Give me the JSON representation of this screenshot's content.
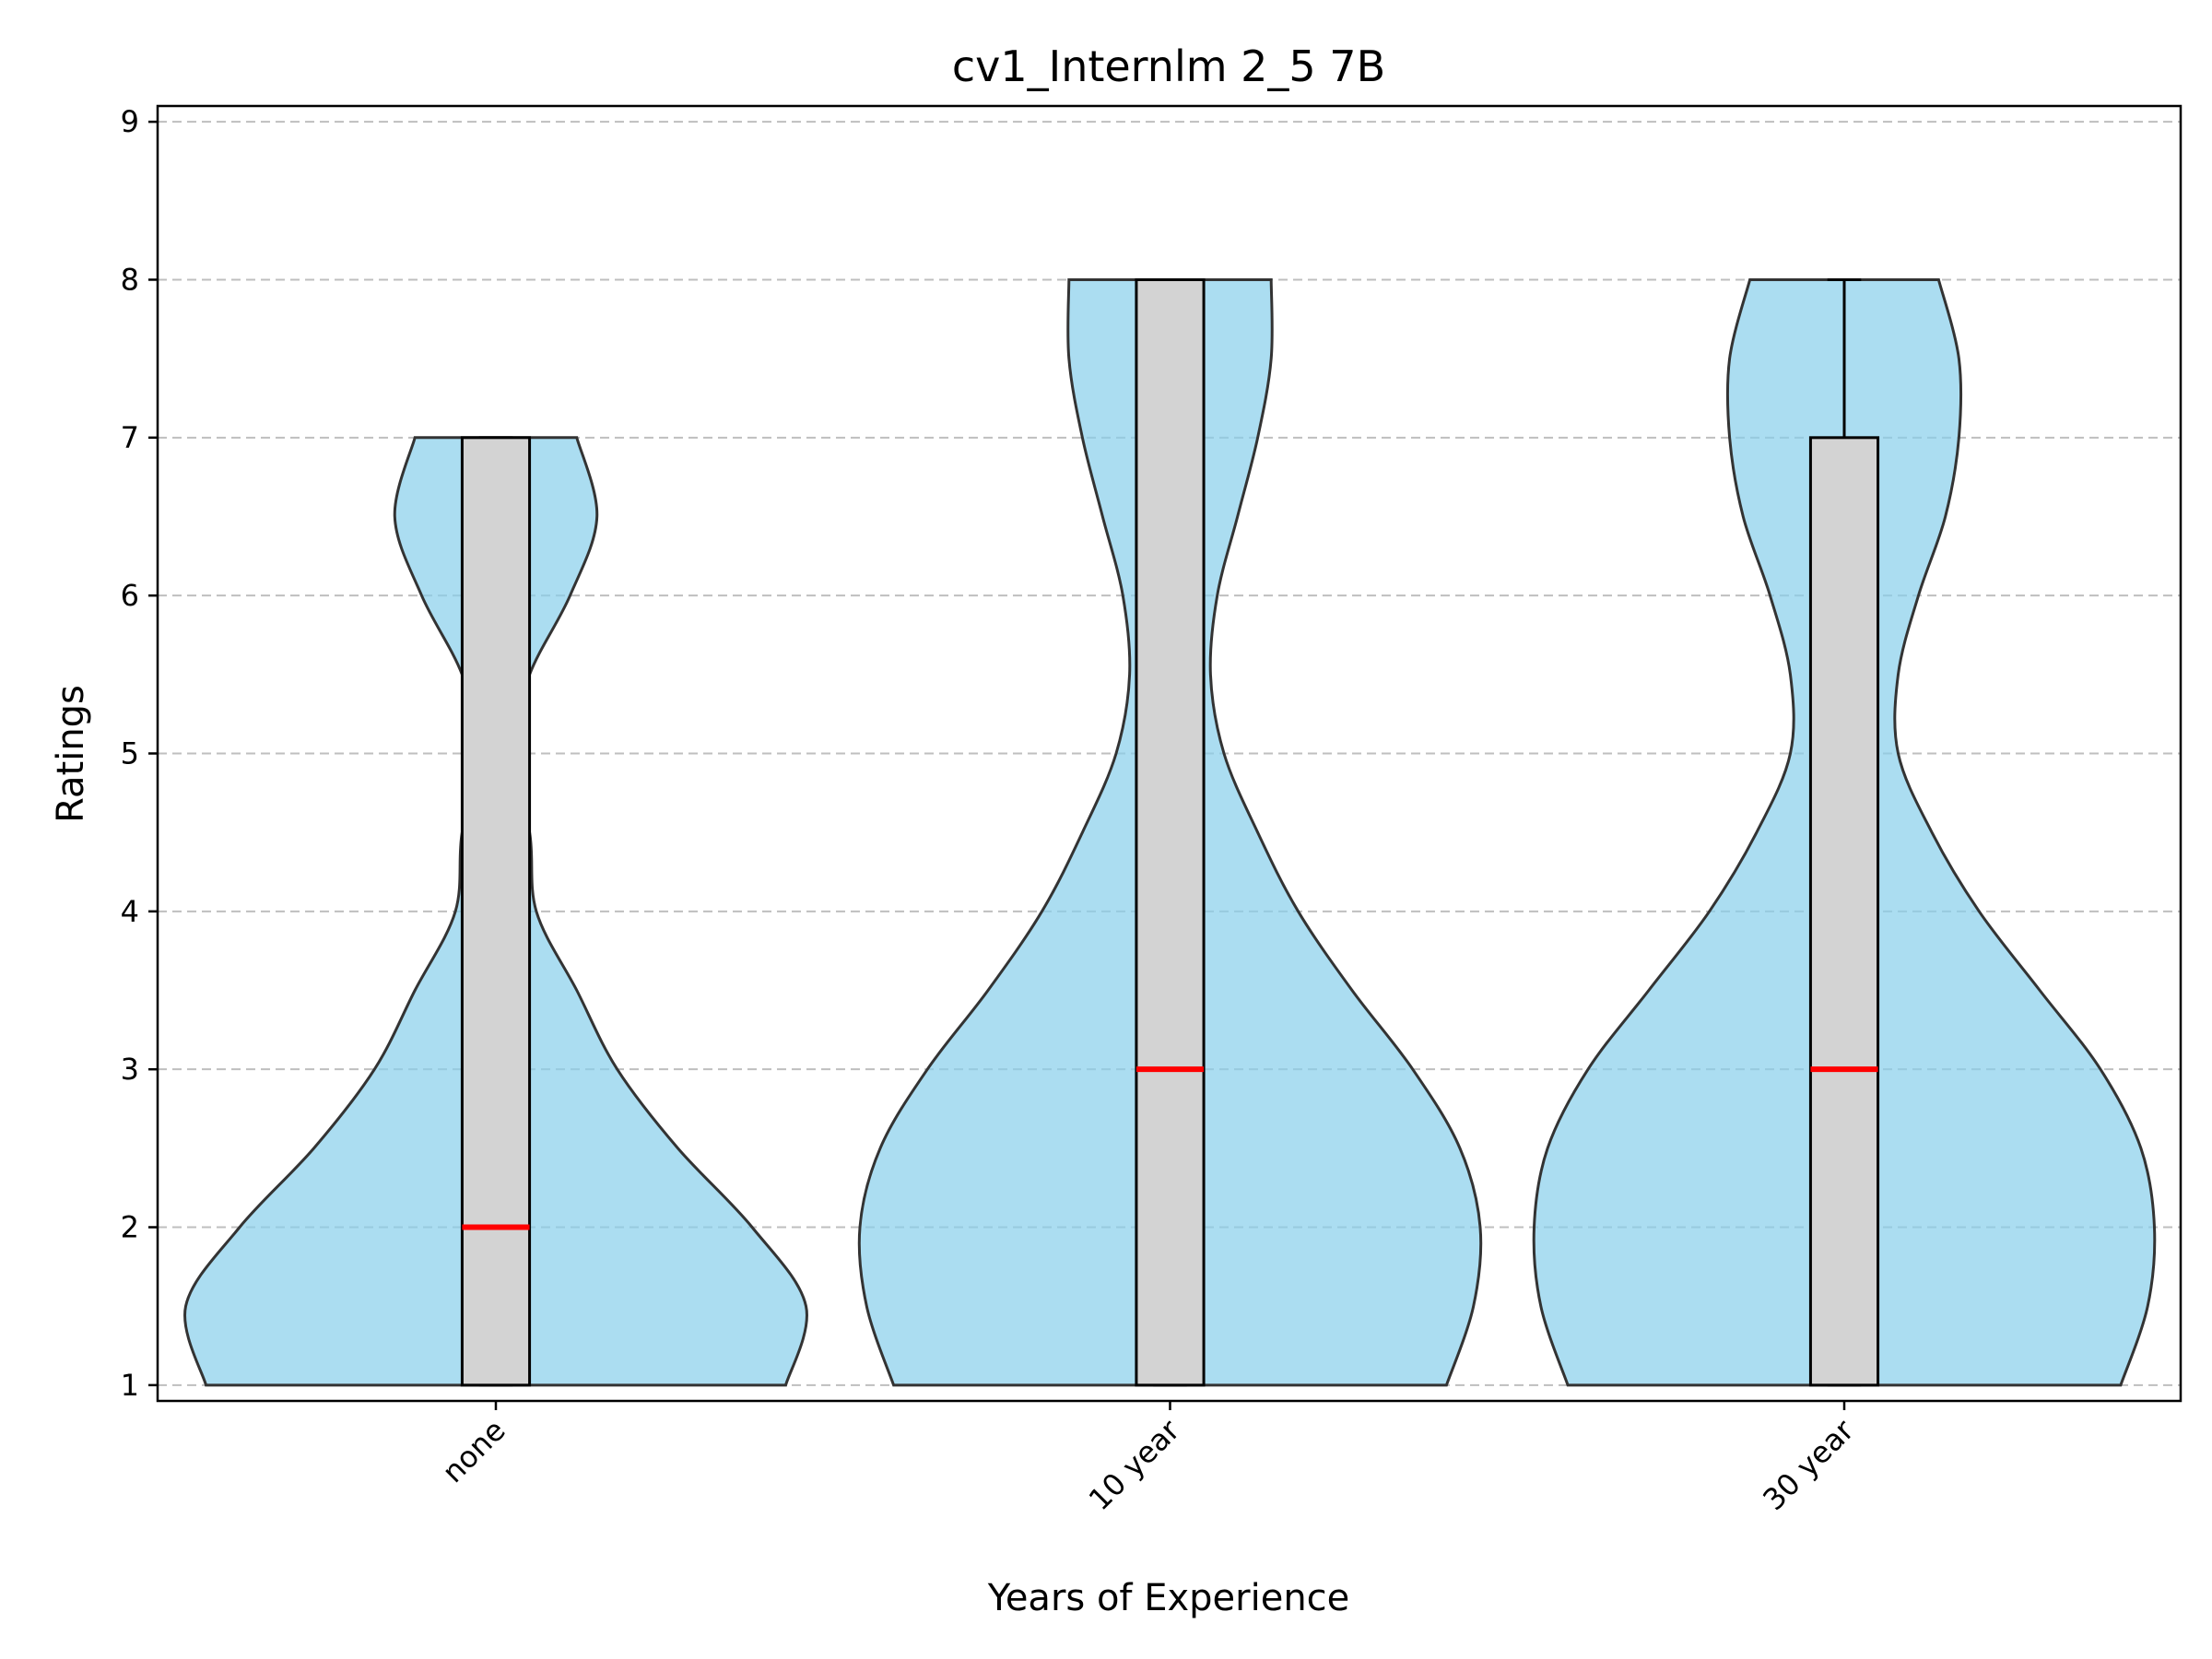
{
  "chart_data": {
    "type": "violin",
    "title": "cv1_Internlm 2_5 7B",
    "xlabel": "Years of Experience",
    "ylabel": "Ratings",
    "ylim": [
      0.9,
      9.1
    ],
    "yticks": [
      1,
      2,
      3,
      4,
      5,
      6,
      7,
      8,
      9
    ],
    "grid": "y-dashed",
    "colors": {
      "violin": "#87ceeb",
      "box": "#d3d3d3",
      "median": "#ff0000"
    },
    "categories": [
      "none",
      "10 year",
      "30 year"
    ],
    "series": [
      {
        "category": "none",
        "min": 1,
        "q1": 1,
        "median": 2,
        "q3": 7,
        "max": 7,
        "density": [
          [
            1,
            0.43
          ],
          [
            1.5,
            0.46
          ],
          [
            2,
            0.38
          ],
          [
            2.5,
            0.27
          ],
          [
            3,
            0.18
          ],
          [
            3.5,
            0.12
          ],
          [
            4,
            0.06
          ],
          [
            4.5,
            0.05
          ],
          [
            5,
            0.02
          ],
          [
            5.5,
            0.05
          ],
          [
            6,
            0.11
          ],
          [
            6.5,
            0.15
          ],
          [
            7,
            0.12
          ]
        ]
      },
      {
        "category": "10 year",
        "min": 1,
        "q1": 1,
        "median": 3,
        "q3": 8,
        "max": 8,
        "density": [
          [
            1,
            0.41
          ],
          [
            1.5,
            0.45
          ],
          [
            2,
            0.46
          ],
          [
            2.5,
            0.43
          ],
          [
            3,
            0.36
          ],
          [
            3.5,
            0.27
          ],
          [
            4,
            0.19
          ],
          [
            4.5,
            0.13
          ],
          [
            5,
            0.08
          ],
          [
            5.5,
            0.06
          ],
          [
            6,
            0.07
          ],
          [
            6.5,
            0.1
          ],
          [
            7,
            0.13
          ],
          [
            7.5,
            0.15
          ],
          [
            8,
            0.15
          ]
        ]
      },
      {
        "category": "30 year",
        "min": 1,
        "q1": 1,
        "median": 3,
        "q3": 7,
        "max": 8,
        "density": [
          [
            1,
            0.41
          ],
          [
            1.5,
            0.45
          ],
          [
            2,
            0.46
          ],
          [
            2.5,
            0.44
          ],
          [
            3,
            0.38
          ],
          [
            3.5,
            0.29
          ],
          [
            4,
            0.2
          ],
          [
            4.5,
            0.13
          ],
          [
            5,
            0.08
          ],
          [
            5.5,
            0.08
          ],
          [
            6,
            0.11
          ],
          [
            6.5,
            0.15
          ],
          [
            7,
            0.17
          ],
          [
            7.5,
            0.17
          ],
          [
            8,
            0.14
          ]
        ]
      }
    ]
  }
}
